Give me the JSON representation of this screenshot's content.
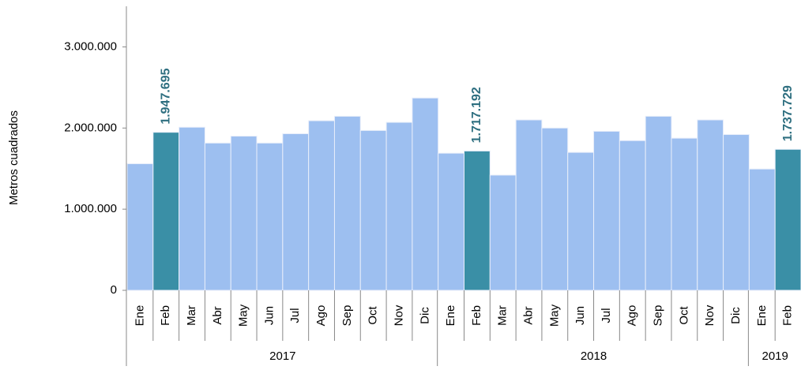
{
  "chart_data": {
    "type": "bar",
    "y_label": "Metros cuadrados",
    "groups": [
      {
        "label": "2017",
        "categories": [
          "Ene",
          "Feb",
          "Mar",
          "Abr",
          "May",
          "Jun",
          "Jul",
          "Ago",
          "Sep",
          "Oct",
          "Nov",
          "Dic"
        ]
      },
      {
        "label": "2018",
        "categories": [
          "Ene",
          "Feb",
          "Mar",
          "Abr",
          "May",
          "Jun",
          "Jul",
          "Ago",
          "Sep",
          "Oct",
          "Nov",
          "Dic"
        ]
      },
      {
        "label": "2019",
        "categories": [
          "Ene",
          "Feb"
        ]
      }
    ],
    "values": [
      1560000,
      1947695,
      2010000,
      1815000,
      1900000,
      1815000,
      1930000,
      2090000,
      2145000,
      1970000,
      2070000,
      2370000,
      1690000,
      1717192,
      1420000,
      2100000,
      2000000,
      1700000,
      1960000,
      1845000,
      2145000,
      1875000,
      2100000,
      1920000,
      1495000,
      1737729
    ],
    "value_labels": [
      null,
      "1.947.695",
      null,
      null,
      null,
      null,
      null,
      null,
      null,
      null,
      null,
      null,
      null,
      "1.717.192",
      null,
      null,
      null,
      null,
      null,
      null,
      null,
      null,
      null,
      null,
      null,
      "1.737.729"
    ],
    "colors": [
      "#9dbff0",
      "#3a8fa6",
      "#9dbff0",
      "#9dbff0",
      "#9dbff0",
      "#9dbff0",
      "#9dbff0",
      "#9dbff0",
      "#9dbff0",
      "#9dbff0",
      "#9dbff0",
      "#9dbff0",
      "#9dbff0",
      "#3a8fa6",
      "#9dbff0",
      "#9dbff0",
      "#9dbff0",
      "#9dbff0",
      "#9dbff0",
      "#9dbff0",
      "#9dbff0",
      "#9dbff0",
      "#9dbff0",
      "#9dbff0",
      "#9dbff0",
      "#3a8fa6"
    ],
    "ylim": [
      0,
      3500000
    ],
    "yticks": [
      0,
      {
        "value": 1000000,
        "label": "1.000.000"
      },
      {
        "value": 2000000,
        "label": "2.000.000"
      },
      {
        "value": 3000000,
        "label": "3.000.000"
      }
    ],
    "grid": false
  }
}
